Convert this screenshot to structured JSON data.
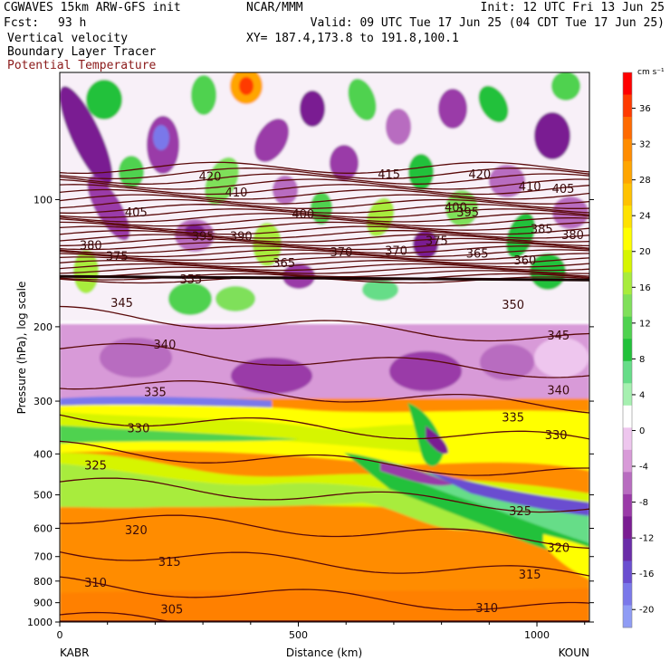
{
  "header": {
    "model": "CGWAVES 15km ARW-GFS init",
    "org": "NCAR/MMM",
    "init": "Init: 12 UTC Fri 13 Jun 25",
    "fcst_label": "Fcst:",
    "fcst_value": "93 h",
    "valid": "Valid: 09 UTC Tue 17 Jun 25 (04 CDT Tue 17 Jun 25)",
    "field1": "Vertical velocity",
    "field2": "Boundary Layer Tracer",
    "field3": "Potential Temperature",
    "xy": "XY= 187.4,173.8 to 191.8,100.1"
  },
  "colors": {
    "contour": "#5a0a0a",
    "field3_text": "#8b1a1a"
  },
  "chart_data": {
    "type": "heatmap",
    "title": "",
    "xlabel": "Distance (km)",
    "ylabel": "Pressure (hPa), log scale",
    "x_start_label": "KABR",
    "x_end_label": "KOUN",
    "xlim": [
      0,
      1110
    ],
    "ylim_hpa": [
      1000,
      50
    ],
    "x_ticks": [
      0,
      500,
      1000
    ],
    "y_ticks": [
      100,
      200,
      300,
      400,
      500,
      600,
      700,
      800,
      900,
      1000
    ],
    "y_scale": "log",
    "colorbar": {
      "unit": "cm s⁻¹",
      "labels": [
        36,
        32,
        28,
        24,
        20,
        16,
        12,
        8,
        4,
        0,
        -4,
        -8,
        -12,
        -16,
        -20
      ],
      "colors": [
        "#ff0000",
        "#ff3a00",
        "#ff6a00",
        "#ff8c00",
        "#ffa500",
        "#ffc200",
        "#ffe200",
        "#ffff00",
        "#d6f500",
        "#a8ec3c",
        "#7fe05a",
        "#4fd24f",
        "#22c13a",
        "#66dd88",
        "#a6f0b0",
        "#ffffff",
        "#eec6ee",
        "#d89ad8",
        "#b86cc0",
        "#9a3aa8",
        "#7a1c92",
        "#6a2ca8",
        "#6a4ed0",
        "#7a78ea",
        "#8f9cf5"
      ]
    },
    "potential_temperature_labels": [
      {
        "value": "420",
        "x": 315,
        "p": 88
      },
      {
        "value": "415",
        "x": 690,
        "p": 87
      },
      {
        "value": "420",
        "x": 880,
        "p": 87
      },
      {
        "value": "410",
        "x": 370,
        "p": 96
      },
      {
        "value": "410",
        "x": 985,
        "p": 93
      },
      {
        "value": "405",
        "x": 1055,
        "p": 94
      },
      {
        "value": "405",
        "x": 160,
        "p": 107
      },
      {
        "value": "400",
        "x": 510,
        "p": 108
      },
      {
        "value": "400",
        "x": 830,
        "p": 104
      },
      {
        "value": "395",
        "x": 855,
        "p": 107
      },
      {
        "value": "395",
        "x": 300,
        "p": 122
      },
      {
        "value": "390",
        "x": 380,
        "p": 122
      },
      {
        "value": "385",
        "x": 1010,
        "p": 117
      },
      {
        "value": "380",
        "x": 65,
        "p": 128
      },
      {
        "value": "380",
        "x": 1075,
        "p": 121
      },
      {
        "value": "375",
        "x": 120,
        "p": 136
      },
      {
        "value": "375",
        "x": 790,
        "p": 125
      },
      {
        "value": "370",
        "x": 590,
        "p": 133
      },
      {
        "value": "370",
        "x": 705,
        "p": 132
      },
      {
        "value": "365",
        "x": 470,
        "p": 141
      },
      {
        "value": "365",
        "x": 875,
        "p": 134
      },
      {
        "value": "360",
        "x": 975,
        "p": 139
      },
      {
        "value": "355",
        "x": 275,
        "p": 154
      },
      {
        "value": "350",
        "x": 950,
        "p": 177
      },
      {
        "value": "345",
        "x": 130,
        "p": 175
      },
      {
        "value": "345",
        "x": 1045,
        "p": 209
      },
      {
        "value": "340",
        "x": 220,
        "p": 220
      },
      {
        "value": "340",
        "x": 1045,
        "p": 282
      },
      {
        "value": "335",
        "x": 200,
        "p": 285
      },
      {
        "value": "335",
        "x": 950,
        "p": 327
      },
      {
        "value": "330",
        "x": 165,
        "p": 347
      },
      {
        "value": "330",
        "x": 1040,
        "p": 360
      },
      {
        "value": "325",
        "x": 75,
        "p": 425
      },
      {
        "value": "325",
        "x": 965,
        "p": 545
      },
      {
        "value": "320",
        "x": 160,
        "p": 605
      },
      {
        "value": "320",
        "x": 1045,
        "p": 665
      },
      {
        "value": "315",
        "x": 230,
        "p": 718
      },
      {
        "value": "315",
        "x": 985,
        "p": 770
      },
      {
        "value": "310",
        "x": 75,
        "p": 805
      },
      {
        "value": "310",
        "x": 895,
        "p": 925
      },
      {
        "value": "305",
        "x": 235,
        "p": 930
      }
    ]
  }
}
